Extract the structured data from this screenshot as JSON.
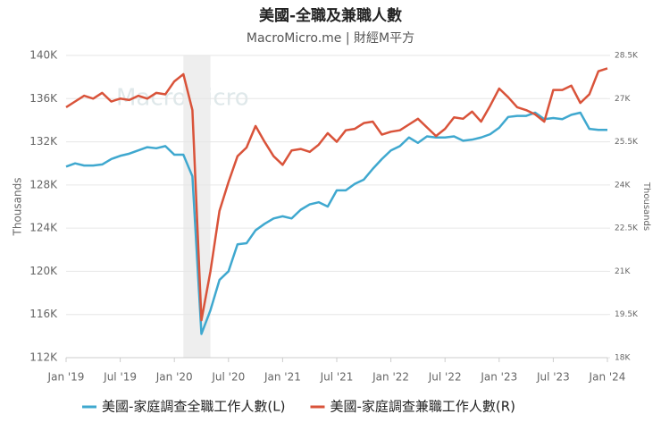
{
  "chart_data": {
    "type": "line",
    "title": "美國-全職及兼職人數",
    "subtitle": "MacroMicro.me | 財經M平方",
    "watermark": "MacroMicro",
    "y_label": "Thousands",
    "y2_label": "Thousands",
    "x": [
      "2019-01",
      "2019-02",
      "2019-03",
      "2019-04",
      "2019-05",
      "2019-06",
      "2019-07",
      "2019-08",
      "2019-09",
      "2019-10",
      "2019-11",
      "2019-12",
      "2020-01",
      "2020-02",
      "2020-03",
      "2020-04",
      "2020-05",
      "2020-06",
      "2020-07",
      "2020-08",
      "2020-09",
      "2020-10",
      "2020-11",
      "2020-12",
      "2021-01",
      "2021-02",
      "2021-03",
      "2021-04",
      "2021-05",
      "2021-06",
      "2021-07",
      "2021-08",
      "2021-09",
      "2021-10",
      "2021-11",
      "2021-12",
      "2022-01",
      "2022-02",
      "2022-03",
      "2022-04",
      "2022-05",
      "2022-06",
      "2022-07",
      "2022-08",
      "2022-09",
      "2022-10",
      "2022-11",
      "2022-12",
      "2023-01",
      "2023-02",
      "2023-03",
      "2023-04",
      "2023-05",
      "2023-06",
      "2023-07",
      "2023-08",
      "2023-09",
      "2023-10",
      "2023-11",
      "2023-12",
      "2024-01"
    ],
    "xlim": [
      "2019-01",
      "2024-01"
    ],
    "xticks": [
      {
        "value": "2019-01",
        "label": "Jan '19"
      },
      {
        "value": "2019-07",
        "label": "Jul '19"
      },
      {
        "value": "2020-01",
        "label": "Jan '20"
      },
      {
        "value": "2020-07",
        "label": "Jul '20"
      },
      {
        "value": "2021-01",
        "label": "Jan '21"
      },
      {
        "value": "2021-07",
        "label": "Jul '21"
      },
      {
        "value": "2022-01",
        "label": "Jan '22"
      },
      {
        "value": "2022-07",
        "label": "Jul '22"
      },
      {
        "value": "2023-01",
        "label": "Jan '23"
      },
      {
        "value": "2023-07",
        "label": "Jul '23"
      },
      {
        "value": "2024-01",
        "label": "Jan '24"
      }
    ],
    "ylim": [
      112,
      140
    ],
    "yticks": [
      {
        "value": 112,
        "label": "112K"
      },
      {
        "value": 116,
        "label": "116K"
      },
      {
        "value": 120,
        "label": "120K"
      },
      {
        "value": 124,
        "label": "124K"
      },
      {
        "value": 128,
        "label": "128K"
      },
      {
        "value": 132,
        "label": "132K"
      },
      {
        "value": 136,
        "label": "136K"
      },
      {
        "value": 140,
        "label": "140K"
      }
    ],
    "y2lim": [
      18,
      28.5
    ],
    "y2ticks": [
      {
        "value": 18,
        "label": "18K"
      },
      {
        "value": 19.5,
        "label": "19.5K"
      },
      {
        "value": 21,
        "label": "21K"
      },
      {
        "value": 22.5,
        "label": "22.5K"
      },
      {
        "value": 24,
        "label": "24K"
      },
      {
        "value": 25.5,
        "label": "25.5K"
      },
      {
        "value": 27,
        "label": "27K"
      },
      {
        "value": 28.5,
        "label": "28.5K"
      }
    ],
    "grid": true,
    "shaded_ranges": [
      [
        "2020-02",
        "2020-05"
      ]
    ],
    "series": [
      {
        "name": "美國-家庭調查全職工作人數(L)",
        "color": "#3fa8cf",
        "axis": "y",
        "values": [
          129.7,
          130.0,
          129.8,
          129.8,
          129.9,
          130.4,
          130.7,
          130.9,
          131.2,
          131.5,
          131.4,
          131.6,
          130.8,
          130.8,
          128.8,
          114.2,
          116.4,
          119.2,
          120.0,
          122.5,
          122.6,
          123.8,
          124.4,
          124.9,
          125.1,
          124.9,
          125.7,
          126.2,
          126.4,
          126.0,
          127.5,
          127.5,
          128.1,
          128.5,
          129.5,
          130.4,
          131.2,
          131.6,
          132.4,
          131.9,
          132.5,
          132.4,
          132.4,
          132.5,
          132.1,
          132.2,
          132.4,
          132.7,
          133.3,
          134.3,
          134.4,
          134.4,
          134.7,
          134.1,
          134.2,
          134.1,
          134.5,
          134.7,
          133.2,
          133.1,
          133.1
        ]
      },
      {
        "name": "美國-家庭調查兼職工作人數(R)",
        "color": "#d9533a",
        "axis": "y2",
        "values": [
          26.7,
          26.9,
          27.1,
          27.0,
          27.2,
          26.9,
          27.0,
          26.95,
          27.1,
          27.0,
          27.2,
          27.15,
          27.6,
          27.85,
          26.6,
          19.3,
          21.0,
          23.1,
          24.1,
          25.0,
          25.3,
          26.05,
          25.5,
          25.0,
          24.7,
          25.2,
          25.25,
          25.15,
          25.4,
          25.8,
          25.5,
          25.9,
          25.95,
          26.15,
          26.2,
          25.75,
          25.85,
          25.9,
          26.1,
          26.3,
          26.0,
          25.7,
          25.95,
          26.35,
          26.3,
          26.55,
          26.2,
          26.75,
          27.35,
          27.05,
          26.7,
          26.6,
          26.45,
          26.2,
          27.3,
          27.3,
          27.45,
          26.85,
          27.15,
          27.95,
          28.05
        ]
      }
    ]
  }
}
